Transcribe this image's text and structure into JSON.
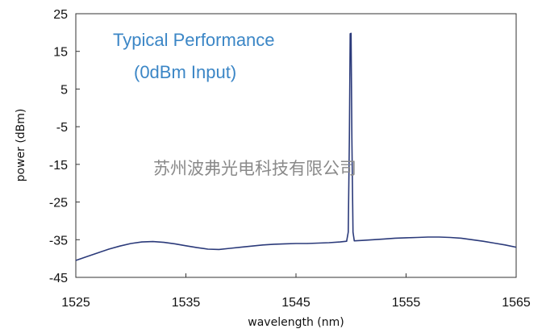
{
  "chart_data": {
    "type": "line",
    "title": "",
    "xlabel": "wavelength (nm)",
    "ylabel": "power (dBm)",
    "xlim": [
      1525,
      1565
    ],
    "ylim": [
      -45,
      25
    ],
    "xticks": [
      1525,
      1535,
      1545,
      1555,
      1565
    ],
    "yticks": [
      -45,
      -35,
      -25,
      -15,
      -5,
      5,
      15,
      25
    ],
    "grid": false,
    "legend": "none",
    "annotations": [
      "Typical Performance",
      "(0dBm Input)"
    ],
    "watermark": "苏州波弗光电科技有限公司",
    "series": [
      {
        "color": "#2b3a7a",
        "points": [
          [
            1525,
            -40.5
          ],
          [
            1526,
            -39.5
          ],
          [
            1527,
            -38.5
          ],
          [
            1528,
            -37.5
          ],
          [
            1529,
            -36.7
          ],
          [
            1530,
            -36.0
          ],
          [
            1531,
            -35.6
          ],
          [
            1532,
            -35.5
          ],
          [
            1533,
            -35.7
          ],
          [
            1534,
            -36.1
          ],
          [
            1535,
            -36.6
          ],
          [
            1536,
            -37.1
          ],
          [
            1537,
            -37.5
          ],
          [
            1538,
            -37.6
          ],
          [
            1539,
            -37.3
          ],
          [
            1540,
            -37.0
          ],
          [
            1541,
            -36.7
          ],
          [
            1542,
            -36.4
          ],
          [
            1543,
            -36.2
          ],
          [
            1544,
            -36.1
          ],
          [
            1545,
            -36.0
          ],
          [
            1546,
            -36.0
          ],
          [
            1547,
            -35.9
          ],
          [
            1548,
            -35.8
          ],
          [
            1549,
            -35.6
          ],
          [
            1549.6,
            -35.4
          ],
          [
            1549.75,
            -33.0
          ],
          [
            1549.85,
            -8.0
          ],
          [
            1549.92,
            19.7
          ],
          [
            1550.0,
            19.8
          ],
          [
            1550.08,
            -8.0
          ],
          [
            1550.18,
            -33.0
          ],
          [
            1550.3,
            -35.3
          ],
          [
            1551,
            -35.2
          ],
          [
            1552,
            -35.0
          ],
          [
            1553,
            -34.8
          ],
          [
            1554,
            -34.6
          ],
          [
            1555,
            -34.5
          ],
          [
            1556,
            -34.4
          ],
          [
            1557,
            -34.3
          ],
          [
            1558,
            -34.3
          ],
          [
            1559,
            -34.4
          ],
          [
            1560,
            -34.6
          ],
          [
            1561,
            -35.0
          ],
          [
            1562,
            -35.4
          ],
          [
            1563,
            -35.9
          ],
          [
            1564,
            -36.4
          ],
          [
            1565,
            -37.0
          ]
        ]
      }
    ]
  }
}
